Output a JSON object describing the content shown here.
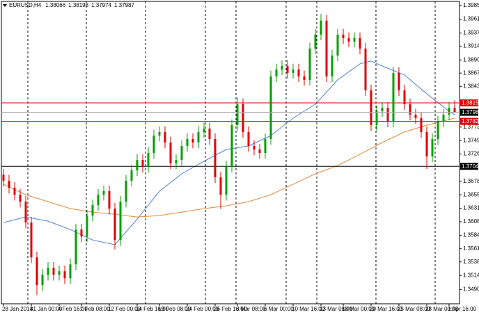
{
  "chart_data": {
    "type": "candlestick",
    "symbol": "EURUSD,H4",
    "up_color": "#00a000",
    "down_color": "#e00000",
    "ylim": [
      1.3465,
      1.3992
    ],
    "yticks": [
      {
        "value": 1.3985,
        "label": "1.39850"
      },
      {
        "value": 1.3961,
        "label": "1.39610"
      },
      {
        "value": 1.3937,
        "label": "1.39370"
      },
      {
        "value": 1.3914,
        "label": "1.39140"
      },
      {
        "value": 1.389,
        "label": "1.38900"
      },
      {
        "value": 1.3867,
        "label": "1.38670"
      },
      1.38435,
      {
        "value": 1.3773,
        "label": "1.37730"
      },
      1.37495,
      {
        "value": 1.3726,
        "label": "1.37260"
      },
      1.36785,
      {
        "value": 1.3655,
        "label": "1.36550"
      },
      1.36315,
      {
        "value": 1.3608,
        "label": "1.36080"
      },
      1.35845,
      {
        "value": 1.3561,
        "label": "1.35610"
      },
      {
        "value": 1.3538,
        "label": "1.35380"
      },
      1.35145,
      {
        "value": 1.349,
        "label": "1.34900"
      }
    ],
    "levels": [
      {
        "value": 1.38151,
        "color": "#e00000"
      },
      {
        "value": 1.37829,
        "color": "#e00000"
      },
      {
        "value": 1.37045,
        "color": "#000000"
      }
    ],
    "categories": [
      "28 Jan 2014",
      null,
      null,
      null,
      null,
      "31 Jan 00:00",
      null,
      null,
      null,
      null,
      "4 Feb 16:00",
      null,
      null,
      null,
      "7 Feb 08:00",
      null,
      null,
      null,
      null,
      "12 Feb 00:00",
      null,
      null,
      null,
      null,
      "14 Feb 16:00",
      null,
      null,
      null,
      "19 Feb 08:00",
      null,
      null,
      null,
      null,
      "24 Feb 00:00",
      null,
      null,
      null,
      null,
      "26 Feb 16:00",
      null,
      null,
      null,
      "3 Mar 08:00",
      null,
      null,
      null,
      null,
      "6 Mar 00:00",
      null,
      null,
      null,
      null,
      "10 Mar 16:00",
      null,
      null,
      null,
      null,
      "13 Mar 08:00",
      null,
      null,
      null,
      "18 Mar 00:00",
      null,
      null,
      null,
      null,
      "20 Mar 16:00",
      null,
      null,
      null,
      null,
      "25 Mar 08:00",
      null,
      null,
      null,
      null,
      "28 Mar 00:00",
      null,
      null,
      null,
      "1 Apr 16:00",
      null
    ],
    "open": [
      1.369,
      1.36794,
      1.36672,
      1.36551,
      1.3643,
      1.36066,
      1.35459,
      1.34974,
      1.35156,
      1.35277,
      1.35156,
      1.35217,
      1.35095,
      1.35338,
      1.35944,
      1.35823,
      1.36187,
      1.36369,
      1.36551,
      1.36612,
      1.36308,
      1.35762,
      1.3643,
      1.36794,
      1.36976,
      1.37157,
      1.37036,
      1.37279,
      1.37582,
      1.37643,
      1.37461,
      1.37097,
      1.37157,
      1.374,
      1.37521,
      1.37461,
      1.37643,
      1.37703,
      1.37521,
      1.36854,
      1.36551,
      1.37036,
      1.37764,
      1.38128,
      1.37643,
      1.374,
      1.37339,
      1.37279,
      1.37521,
      1.38613,
      1.38734,
      1.38795,
      1.38674,
      1.38734,
      1.38613,
      1.38552,
      1.39098,
      1.39341,
      1.39584,
      1.38613,
      1.38977,
      1.39341,
      1.3928,
      1.39219,
      1.3928,
      1.39098,
      1.3837,
      1.37764,
      1.38006,
      1.38067,
      1.37825,
      1.38674,
      1.3837,
      1.38128,
      1.37946,
      1.37885,
      1.37643,
      1.37218,
      1.37521,
      1.37825,
      1.37946,
      1.38066
    ],
    "high": [
      1.37,
      1.36894,
      1.36772,
      1.36651,
      1.3653,
      1.36166,
      1.35559,
      1.35256,
      1.35377,
      1.35377,
      1.35317,
      1.35317,
      1.35438,
      1.36044,
      1.36044,
      1.36287,
      1.36469,
      1.36651,
      1.36712,
      1.36712,
      1.36408,
      1.3653,
      1.36894,
      1.37076,
      1.37257,
      1.37257,
      1.37379,
      1.37682,
      1.37743,
      1.37743,
      1.37561,
      1.37257,
      1.375,
      1.37621,
      1.37621,
      1.37743,
      1.37803,
      1.37803,
      1.37621,
      1.36954,
      1.37136,
      1.37864,
      1.3825,
      1.38228,
      1.37743,
      1.375,
      1.37439,
      1.37621,
      1.38713,
      1.38834,
      1.38895,
      1.38895,
      1.38834,
      1.38834,
      1.38713,
      1.39198,
      1.39441,
      1.397,
      1.39684,
      1.39077,
      1.39441,
      1.39441,
      1.3938,
      1.3938,
      1.3938,
      1.39198,
      1.3847,
      1.38106,
      1.38167,
      1.38167,
      1.38774,
      1.38774,
      1.3847,
      1.38228,
      1.38046,
      1.37985,
      1.37743,
      1.37621,
      1.37925,
      1.38046,
      1.38166,
      1.38198
    ],
    "low": [
      1.36694,
      1.36572,
      1.36451,
      1.3633,
      1.35966,
      1.35359,
      1.348,
      1.34874,
      1.35056,
      1.35056,
      1.35056,
      1.34995,
      1.34995,
      1.35238,
      1.35723,
      1.35723,
      1.36087,
      1.36269,
      1.36451,
      1.36208,
      1.356,
      1.35662,
      1.3633,
      1.36694,
      1.36876,
      1.36936,
      1.36936,
      1.37179,
      1.37482,
      1.37361,
      1.36997,
      1.36997,
      1.37057,
      1.373,
      1.37361,
      1.37361,
      1.37543,
      1.37421,
      1.36754,
      1.363,
      1.36451,
      1.36936,
      1.37664,
      1.37543,
      1.373,
      1.37239,
      1.37179,
      1.37179,
      1.37421,
      1.38513,
      1.38634,
      1.38574,
      1.38574,
      1.38513,
      1.38452,
      1.38452,
      1.38998,
      1.39241,
      1.38513,
      1.38513,
      1.38877,
      1.3918,
      1.39119,
      1.39119,
      1.38998,
      1.3827,
      1.37664,
      1.37664,
      1.37906,
      1.37725,
      1.37725,
      1.3827,
      1.38028,
      1.37846,
      1.37785,
      1.37543,
      1.37,
      1.37118,
      1.37421,
      1.37725,
      1.37846,
      1.37974
    ],
    "close": [
      1.36794,
      1.36672,
      1.36551,
      1.3643,
      1.36066,
      1.35459,
      1.34974,
      1.35156,
      1.35277,
      1.35156,
      1.35217,
      1.35095,
      1.35338,
      1.35944,
      1.35823,
      1.36187,
      1.36369,
      1.36551,
      1.36612,
      1.36308,
      1.35762,
      1.3643,
      1.36794,
      1.36976,
      1.37157,
      1.37036,
      1.37279,
      1.37582,
      1.37643,
      1.37461,
      1.37097,
      1.37157,
      1.374,
      1.37521,
      1.37461,
      1.37643,
      1.37703,
      1.37521,
      1.36854,
      1.36551,
      1.37036,
      1.37764,
      1.38128,
      1.37643,
      1.374,
      1.37339,
      1.37279,
      1.37521,
      1.38613,
      1.38734,
      1.38795,
      1.38674,
      1.38734,
      1.38613,
      1.38552,
      1.39098,
      1.39341,
      1.39584,
      1.38613,
      1.38977,
      1.39341,
      1.3928,
      1.39219,
      1.3928,
      1.39098,
      1.3837,
      1.37764,
      1.38006,
      1.38067,
      1.37825,
      1.38674,
      1.3837,
      1.38128,
      1.37946,
      1.37885,
      1.37643,
      1.37218,
      1.37521,
      1.37825,
      1.37946,
      1.38066,
      1.37987
    ],
    "overlays": [
      {
        "color": "#4a7fd4",
        "x": [
          0,
          4,
          8,
          12,
          16,
          20,
          24,
          28,
          32,
          36,
          40,
          44,
          48,
          52,
          56,
          60,
          64,
          66,
          68,
          72,
          76,
          80,
          81
        ],
        "values": [
          1.36066,
          1.36163,
          1.3609,
          1.35944,
          1.35762,
          1.35678,
          1.36126,
          1.36612,
          1.36915,
          1.37133,
          1.37339,
          1.374,
          1.37582,
          1.37885,
          1.38128,
          1.38552,
          1.38831,
          1.3888,
          1.38795,
          1.38637,
          1.3831,
          1.38006,
          1.37946
        ]
      },
      {
        "color": "#e08a3c",
        "x": [
          0,
          4,
          8,
          12,
          16,
          20,
          24,
          28,
          32,
          36,
          40,
          44,
          48,
          52,
          56,
          60,
          64,
          68,
          72,
          76,
          80,
          81
        ],
        "values": [
          1.36733,
          1.36551,
          1.3643,
          1.36308,
          1.36248,
          1.36211,
          1.36163,
          1.36187,
          1.36248,
          1.36308,
          1.36357,
          1.3643,
          1.36551,
          1.36733,
          1.36915,
          1.3706,
          1.37254,
          1.37461,
          1.37643,
          1.37764,
          1.37861,
          1.37885
        ]
      }
    ]
  }
}
